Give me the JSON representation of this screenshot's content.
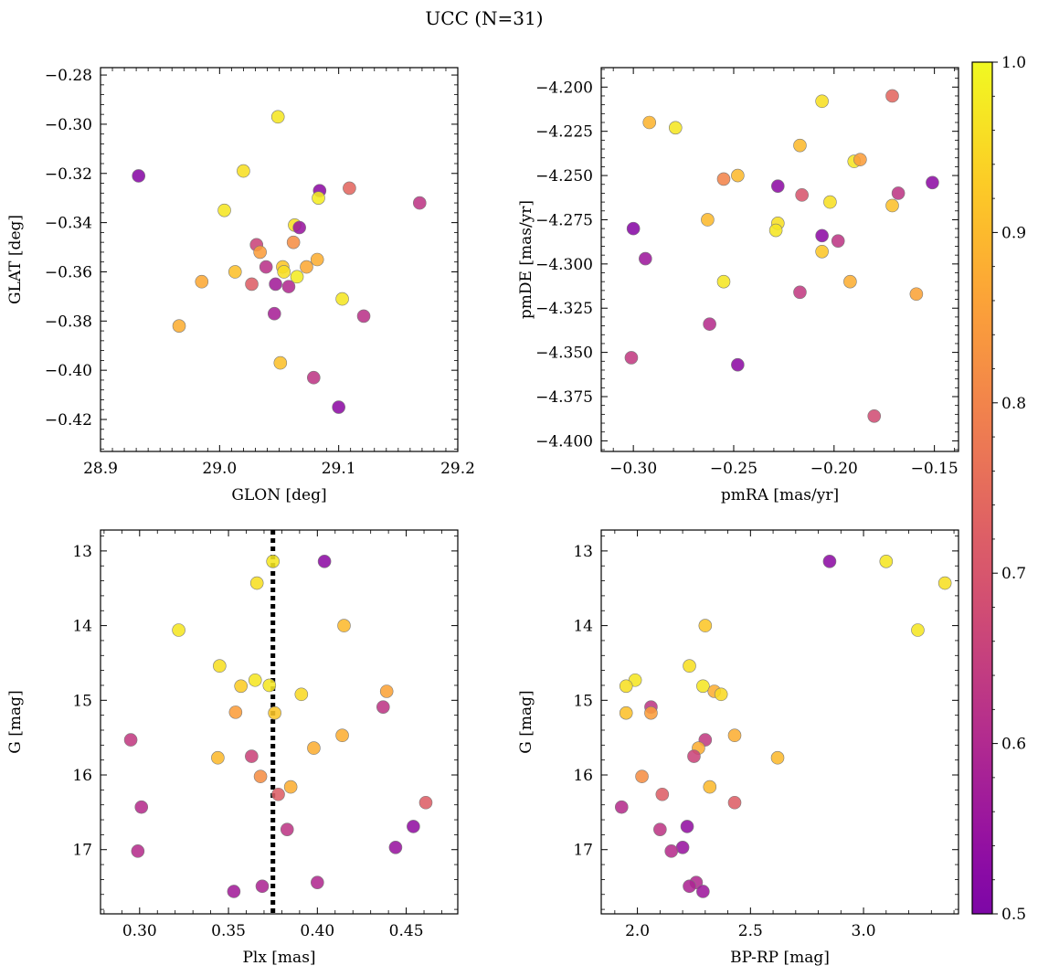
{
  "title": "UCC (N=31)",
  "colorbar": {
    "colormap": "plasma",
    "min": 0.5,
    "max": 1.0,
    "ticks": [
      0.5,
      0.6,
      0.7,
      0.8,
      0.9,
      1.0
    ],
    "tick_labels": [
      "0.5",
      "0.6",
      "0.7",
      "0.8",
      "0.9",
      "1.0"
    ]
  },
  "chart_data": [
    {
      "type": "scatter",
      "xlabel": "GLON [deg]",
      "ylabel": "GLAT [deg]",
      "xlim": [
        28.9,
        29.2
      ],
      "ylim": [
        -0.433,
        -0.277
      ],
      "xticks": [
        28.9,
        29.0,
        29.1,
        29.2
      ],
      "xtick_labels": [
        "28.9",
        "29.0",
        "29.1",
        "29.2"
      ],
      "yticks": [
        -0.42,
        -0.4,
        -0.38,
        -0.36,
        -0.34,
        -0.32,
        -0.3,
        -0.28
      ],
      "ytick_labels": [
        "−0.42",
        "−0.40",
        "−0.38",
        "−0.36",
        "−0.34",
        "−0.32",
        "−0.30",
        "−0.28"
      ],
      "points": [
        {
          "x": 29.049,
          "y": -0.297,
          "c": 0.97
        },
        {
          "x": 28.932,
          "y": -0.321,
          "c": 0.52
        },
        {
          "x": 29.02,
          "y": -0.319,
          "c": 0.96
        },
        {
          "x": 29.084,
          "y": -0.327,
          "c": 0.53
        },
        {
          "x": 29.109,
          "y": -0.326,
          "c": 0.74
        },
        {
          "x": 29.083,
          "y": -0.33,
          "c": 0.98
        },
        {
          "x": 29.168,
          "y": -0.332,
          "c": 0.63
        },
        {
          "x": 29.004,
          "y": -0.335,
          "c": 0.97
        },
        {
          "x": 29.063,
          "y": -0.341,
          "c": 0.96
        },
        {
          "x": 29.067,
          "y": -0.342,
          "c": 0.55
        },
        {
          "x": 29.062,
          "y": -0.348,
          "c": 0.82
        },
        {
          "x": 29.031,
          "y": -0.349,
          "c": 0.66
        },
        {
          "x": 29.034,
          "y": -0.352,
          "c": 0.85
        },
        {
          "x": 29.082,
          "y": -0.355,
          "c": 0.88
        },
        {
          "x": 29.073,
          "y": -0.358,
          "c": 0.87
        },
        {
          "x": 29.053,
          "y": -0.358,
          "c": 0.92
        },
        {
          "x": 29.039,
          "y": -0.358,
          "c": 0.62
        },
        {
          "x": 29.054,
          "y": -0.36,
          "c": 0.96
        },
        {
          "x": 29.013,
          "y": -0.36,
          "c": 0.91
        },
        {
          "x": 29.065,
          "y": -0.362,
          "c": 0.98
        },
        {
          "x": 28.985,
          "y": -0.364,
          "c": 0.87
        },
        {
          "x": 29.047,
          "y": -0.365,
          "c": 0.57
        },
        {
          "x": 29.027,
          "y": -0.365,
          "c": 0.72
        },
        {
          "x": 29.058,
          "y": -0.366,
          "c": 0.6
        },
        {
          "x": 29.103,
          "y": -0.371,
          "c": 0.97
        },
        {
          "x": 29.046,
          "y": -0.377,
          "c": 0.58
        },
        {
          "x": 29.121,
          "y": -0.378,
          "c": 0.62
        },
        {
          "x": 28.966,
          "y": -0.382,
          "c": 0.88
        },
        {
          "x": 29.051,
          "y": -0.397,
          "c": 0.91
        },
        {
          "x": 29.079,
          "y": -0.403,
          "c": 0.63
        },
        {
          "x": 29.1,
          "y": -0.415,
          "c": 0.53
        }
      ]
    },
    {
      "type": "scatter",
      "xlabel": "pmRA [mas/yr]",
      "ylabel": "pmDE [mas/yr]",
      "xlim": [
        -0.316,
        -0.138
      ],
      "ylim": [
        -4.406,
        -4.189
      ],
      "xticks": [
        -0.3,
        -0.25,
        -0.2,
        -0.15
      ],
      "xtick_labels": [
        "−0.30",
        "−0.25",
        "−0.20",
        "−0.15"
      ],
      "yticks": [
        -4.4,
        -4.375,
        -4.35,
        -4.325,
        -4.3,
        -4.275,
        -4.25,
        -4.225,
        -4.2
      ],
      "ytick_labels": [
        "−4.400",
        "−4.375",
        "−4.350",
        "−4.325",
        "−4.300",
        "−4.275",
        "−4.250",
        "−4.225",
        "−4.200"
      ],
      "points": [
        {
          "x": -0.171,
          "y": -4.205,
          "c": 0.74
        },
        {
          "x": -0.206,
          "y": -4.208,
          "c": 0.96
        },
        {
          "x": -0.292,
          "y": -4.22,
          "c": 0.89
        },
        {
          "x": -0.279,
          "y": -4.223,
          "c": 0.97
        },
        {
          "x": -0.217,
          "y": -4.233,
          "c": 0.9
        },
        {
          "x": -0.19,
          "y": -4.242,
          "c": 0.97
        },
        {
          "x": -0.187,
          "y": -4.241,
          "c": 0.85
        },
        {
          "x": -0.248,
          "y": -4.25,
          "c": 0.9
        },
        {
          "x": -0.255,
          "y": -4.252,
          "c": 0.8
        },
        {
          "x": -0.151,
          "y": -4.254,
          "c": 0.53
        },
        {
          "x": -0.228,
          "y": -4.256,
          "c": 0.53
        },
        {
          "x": -0.168,
          "y": -4.26,
          "c": 0.63
        },
        {
          "x": -0.216,
          "y": -4.261,
          "c": 0.7
        },
        {
          "x": -0.202,
          "y": -4.265,
          "c": 0.96
        },
        {
          "x": -0.171,
          "y": -4.267,
          "c": 0.91
        },
        {
          "x": -0.263,
          "y": -4.275,
          "c": 0.9
        },
        {
          "x": -0.228,
          "y": -4.277,
          "c": 0.96
        },
        {
          "x": -0.3,
          "y": -4.28,
          "c": 0.52
        },
        {
          "x": -0.229,
          "y": -4.281,
          "c": 0.97
        },
        {
          "x": -0.206,
          "y": -4.284,
          "c": 0.53
        },
        {
          "x": -0.198,
          "y": -4.287,
          "c": 0.63
        },
        {
          "x": -0.206,
          "y": -4.293,
          "c": 0.92
        },
        {
          "x": -0.294,
          "y": -4.297,
          "c": 0.56
        },
        {
          "x": -0.192,
          "y": -4.31,
          "c": 0.88
        },
        {
          "x": -0.255,
          "y": -4.31,
          "c": 0.97
        },
        {
          "x": -0.217,
          "y": -4.316,
          "c": 0.64
        },
        {
          "x": -0.159,
          "y": -4.317,
          "c": 0.86
        },
        {
          "x": -0.262,
          "y": -4.334,
          "c": 0.61
        },
        {
          "x": -0.301,
          "y": -4.353,
          "c": 0.64
        },
        {
          "x": -0.248,
          "y": -4.357,
          "c": 0.53
        },
        {
          "x": -0.18,
          "y": -4.386,
          "c": 0.68
        }
      ]
    },
    {
      "type": "scatter",
      "xlabel": "Plx [mas]",
      "ylabel": "G [mag]",
      "xlim": [
        0.278,
        0.479
      ],
      "ylim": [
        12.72,
        17.86
      ],
      "y_inverted": true,
      "vline": {
        "x": 0.375,
        "style": "dotted",
        "color": "#000000"
      },
      "xticks": [
        0.3,
        0.35,
        0.4,
        0.45
      ],
      "xtick_labels": [
        "0.30",
        "0.35",
        "0.40",
        "0.45"
      ],
      "yticks": [
        13,
        14,
        15,
        16,
        17
      ],
      "ytick_labels": [
        "13",
        "14",
        "15",
        "16",
        "17"
      ],
      "points": [
        {
          "x": 0.375,
          "y": 13.14,
          "c": 0.97
        },
        {
          "x": 0.404,
          "y": 13.14,
          "c": 0.53
        },
        {
          "x": 0.366,
          "y": 13.43,
          "c": 0.96
        },
        {
          "x": 0.322,
          "y": 14.06,
          "c": 0.97
        },
        {
          "x": 0.415,
          "y": 14.0,
          "c": 0.9
        },
        {
          "x": 0.345,
          "y": 14.54,
          "c": 0.96
        },
        {
          "x": 0.365,
          "y": 14.73,
          "c": 0.97
        },
        {
          "x": 0.357,
          "y": 14.81,
          "c": 0.93
        },
        {
          "x": 0.373,
          "y": 14.8,
          "c": 0.97
        },
        {
          "x": 0.391,
          "y": 14.92,
          "c": 0.95
        },
        {
          "x": 0.439,
          "y": 14.88,
          "c": 0.86
        },
        {
          "x": 0.437,
          "y": 15.09,
          "c": 0.63
        },
        {
          "x": 0.354,
          "y": 15.16,
          "c": 0.85
        },
        {
          "x": 0.376,
          "y": 15.17,
          "c": 0.92
        },
        {
          "x": 0.414,
          "y": 15.47,
          "c": 0.88
        },
        {
          "x": 0.295,
          "y": 15.53,
          "c": 0.64
        },
        {
          "x": 0.398,
          "y": 15.64,
          "c": 0.88
        },
        {
          "x": 0.344,
          "y": 15.77,
          "c": 0.9
        },
        {
          "x": 0.363,
          "y": 15.75,
          "c": 0.66
        },
        {
          "x": 0.368,
          "y": 16.02,
          "c": 0.82
        },
        {
          "x": 0.385,
          "y": 16.16,
          "c": 0.88
        },
        {
          "x": 0.378,
          "y": 16.26,
          "c": 0.72
        },
        {
          "x": 0.461,
          "y": 16.37,
          "c": 0.72
        },
        {
          "x": 0.301,
          "y": 16.43,
          "c": 0.61
        },
        {
          "x": 0.383,
          "y": 16.73,
          "c": 0.63
        },
        {
          "x": 0.454,
          "y": 16.69,
          "c": 0.54
        },
        {
          "x": 0.444,
          "y": 16.97,
          "c": 0.55
        },
        {
          "x": 0.299,
          "y": 17.02,
          "c": 0.61
        },
        {
          "x": 0.4,
          "y": 17.44,
          "c": 0.6
        },
        {
          "x": 0.369,
          "y": 17.49,
          "c": 0.59
        },
        {
          "x": 0.353,
          "y": 17.56,
          "c": 0.57
        }
      ]
    },
    {
      "type": "scatter",
      "xlabel": "BP-RP [mag]",
      "ylabel": "G [mag]",
      "xlim": [
        1.84,
        3.42
      ],
      "ylim": [
        12.72,
        17.86
      ],
      "y_inverted": true,
      "xticks": [
        2.0,
        2.5,
        3.0
      ],
      "xtick_labels": [
        "2.0",
        "2.5",
        "3.0"
      ],
      "yticks": [
        13,
        14,
        15,
        16,
        17
      ],
      "ytick_labels": [
        "13",
        "14",
        "15",
        "16",
        "17"
      ],
      "points": [
        {
          "x": 2.85,
          "y": 13.14,
          "c": 0.53
        },
        {
          "x": 3.1,
          "y": 13.14,
          "c": 0.97
        },
        {
          "x": 3.36,
          "y": 13.43,
          "c": 0.96
        },
        {
          "x": 3.24,
          "y": 14.06,
          "c": 0.97
        },
        {
          "x": 2.3,
          "y": 14.0,
          "c": 0.92
        },
        {
          "x": 2.23,
          "y": 14.54,
          "c": 0.96
        },
        {
          "x": 1.99,
          "y": 14.73,
          "c": 0.97
        },
        {
          "x": 1.95,
          "y": 14.81,
          "c": 0.96
        },
        {
          "x": 2.29,
          "y": 14.81,
          "c": 0.97
        },
        {
          "x": 2.34,
          "y": 14.88,
          "c": 0.88
        },
        {
          "x": 2.37,
          "y": 14.92,
          "c": 0.95
        },
        {
          "x": 2.06,
          "y": 15.09,
          "c": 0.63
        },
        {
          "x": 1.95,
          "y": 15.17,
          "c": 0.91
        },
        {
          "x": 2.06,
          "y": 15.17,
          "c": 0.85
        },
        {
          "x": 2.43,
          "y": 15.47,
          "c": 0.88
        },
        {
          "x": 2.3,
          "y": 15.53,
          "c": 0.64
        },
        {
          "x": 2.27,
          "y": 15.64,
          "c": 0.88
        },
        {
          "x": 2.25,
          "y": 15.75,
          "c": 0.66
        },
        {
          "x": 2.62,
          "y": 15.77,
          "c": 0.9
        },
        {
          "x": 2.02,
          "y": 16.02,
          "c": 0.82
        },
        {
          "x": 2.32,
          "y": 16.16,
          "c": 0.9
        },
        {
          "x": 2.11,
          "y": 16.26,
          "c": 0.72
        },
        {
          "x": 2.43,
          "y": 16.37,
          "c": 0.72
        },
        {
          "x": 1.93,
          "y": 16.43,
          "c": 0.61
        },
        {
          "x": 2.22,
          "y": 16.69,
          "c": 0.54
        },
        {
          "x": 2.1,
          "y": 16.73,
          "c": 0.63
        },
        {
          "x": 2.2,
          "y": 16.97,
          "c": 0.55
        },
        {
          "x": 2.15,
          "y": 17.02,
          "c": 0.61
        },
        {
          "x": 2.26,
          "y": 17.44,
          "c": 0.6
        },
        {
          "x": 2.23,
          "y": 17.49,
          "c": 0.59
        },
        {
          "x": 2.29,
          "y": 17.56,
          "c": 0.56
        }
      ]
    }
  ]
}
